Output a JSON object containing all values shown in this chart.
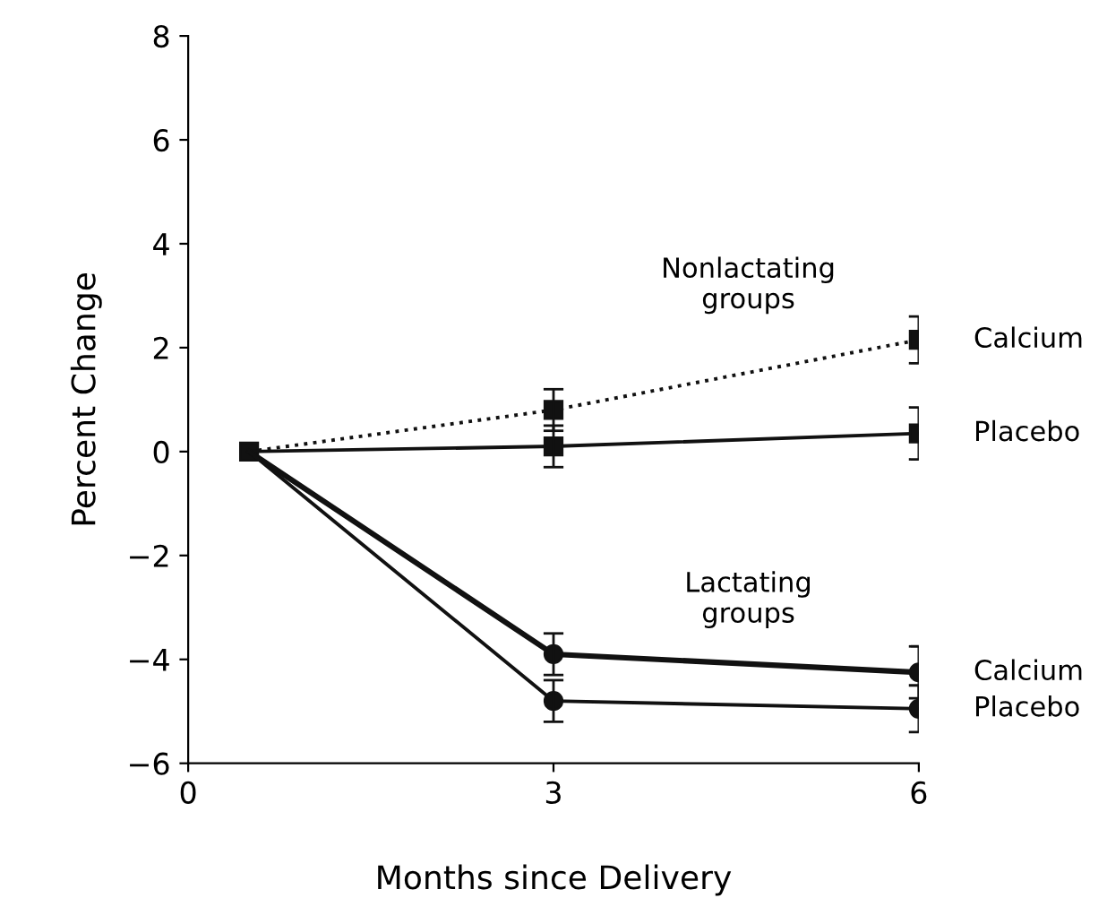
{
  "chart_data": {
    "type": "line",
    "xlabel": "Months since Delivery",
    "ylabel": "Percent Change",
    "x": [
      0.5,
      3,
      6
    ],
    "series": [
      {
        "name": "Calcium",
        "color": "#111111",
        "values": [
          0,
          0.8,
          2.15
        ],
        "errors": [
          null,
          0.4,
          0.45
        ],
        "marker": "square",
        "line_style": "dotted"
      },
      {
        "name": "Placebo",
        "color": "#111111",
        "values": [
          0,
          0.1,
          0.35
        ],
        "errors": [
          null,
          0.4,
          0.5
        ],
        "marker": "square",
        "line_style": "solid"
      },
      {
        "name": "Calcium",
        "color": "#111111",
        "values": [
          0,
          -3.9,
          -4.25
        ],
        "errors": [
          null,
          0.4,
          0.5
        ],
        "marker": "circle",
        "line_style": "solid"
      },
      {
        "name": "Placebo",
        "color": "#111111",
        "values": [
          0,
          -4.8,
          -4.95
        ],
        "errors": [
          null,
          0.4,
          0.45
        ],
        "marker": "circle",
        "line_style": "solid"
      }
    ],
    "annotations": [
      "Nonlactating\ngroups",
      "Lactating\ngroups"
    ],
    "xlim": [
      0,
      6
    ],
    "xticks": [
      0,
      3,
      6
    ],
    "ylim": [
      -6,
      8
    ],
    "yticks": [
      -6,
      -4,
      -2,
      0,
      2,
      4,
      6,
      8
    ],
    "grid": false,
    "legend": false
  }
}
